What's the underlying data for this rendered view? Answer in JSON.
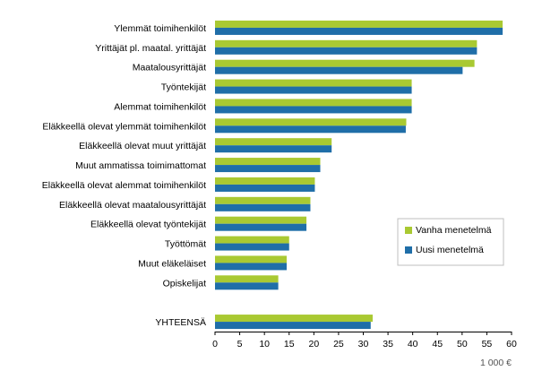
{
  "chart_data": {
    "type": "bar",
    "orientation": "horizontal",
    "categories": [
      "Ylemmät toimihenkilöt",
      "Yrittäjät pl. maatal. yrittäjät",
      "Maatalousyrittäjät",
      "Työntekijät",
      "Alemmat toimihenkilöt",
      "Eläkkeellä olevat ylemmät toimihenkilöt",
      "Eläkkeellä olevat muut yrittäjät",
      "Muut ammatissa toimimattomat",
      "Eläkkeellä olevat alemmat toimihenkilöt",
      "Eläkkeellä olevat maatalousyrittäjät",
      "Eläkkeellä olevat työntekijät",
      "Työttömät",
      "Muut eläkeläiset",
      "Opiskelijat",
      "",
      "YHTEENSÄ"
    ],
    "series": [
      {
        "name": "Vanha menetelmä",
        "color": "#a9c932",
        "values": [
          58.2,
          53.0,
          52.5,
          39.8,
          39.8,
          38.7,
          23.6,
          21.3,
          20.2,
          19.3,
          18.5,
          15.0,
          14.5,
          12.8,
          null,
          31.9
        ]
      },
      {
        "name": "Uusi menetelmä",
        "color": "#1f6ea8",
        "values": [
          58.2,
          53.0,
          50.1,
          39.8,
          39.8,
          38.6,
          23.6,
          21.3,
          20.2,
          19.3,
          18.5,
          15.0,
          14.5,
          12.8,
          null,
          31.5
        ]
      }
    ],
    "xlim": [
      0,
      60
    ],
    "xticks": [
      0,
      5,
      10,
      15,
      20,
      25,
      30,
      35,
      40,
      45,
      50,
      55,
      60
    ],
    "unit": "1 000 €",
    "grid": false,
    "legend_position": "right"
  }
}
